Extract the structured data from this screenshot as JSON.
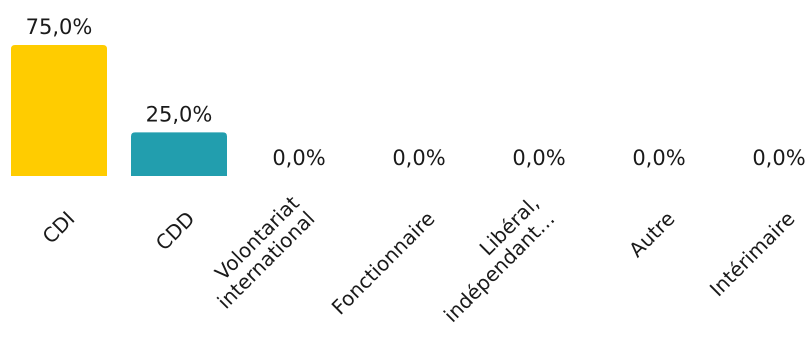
{
  "chart_data": {
    "type": "bar",
    "categories": [
      [
        "CDI"
      ],
      [
        "CDD"
      ],
      [
        "Volontariat",
        "international"
      ],
      [
        "Fonctionnaire"
      ],
      [
        "Libéral,",
        "indépendant…"
      ],
      [
        "Autre"
      ],
      [
        "Intérimaire"
      ]
    ],
    "values": [
      75.0,
      25.0,
      0.0,
      0.0,
      0.0,
      0.0,
      0.0
    ],
    "value_labels": [
      "75,0%",
      "25,0%",
      "0,0%",
      "0,0%",
      "0,0%",
      "0,0%",
      "0,0%"
    ],
    "colors": [
      "#FFCC00",
      "#229EAE",
      "#D9D9D9",
      "#D9D9D9",
      "#D9D9D9",
      "#D9D9D9",
      "#D9D9D9"
    ],
    "ylim": [
      0,
      75
    ],
    "grid": false,
    "legend": "none",
    "title": "",
    "xlabel": "",
    "ylabel": ""
  }
}
